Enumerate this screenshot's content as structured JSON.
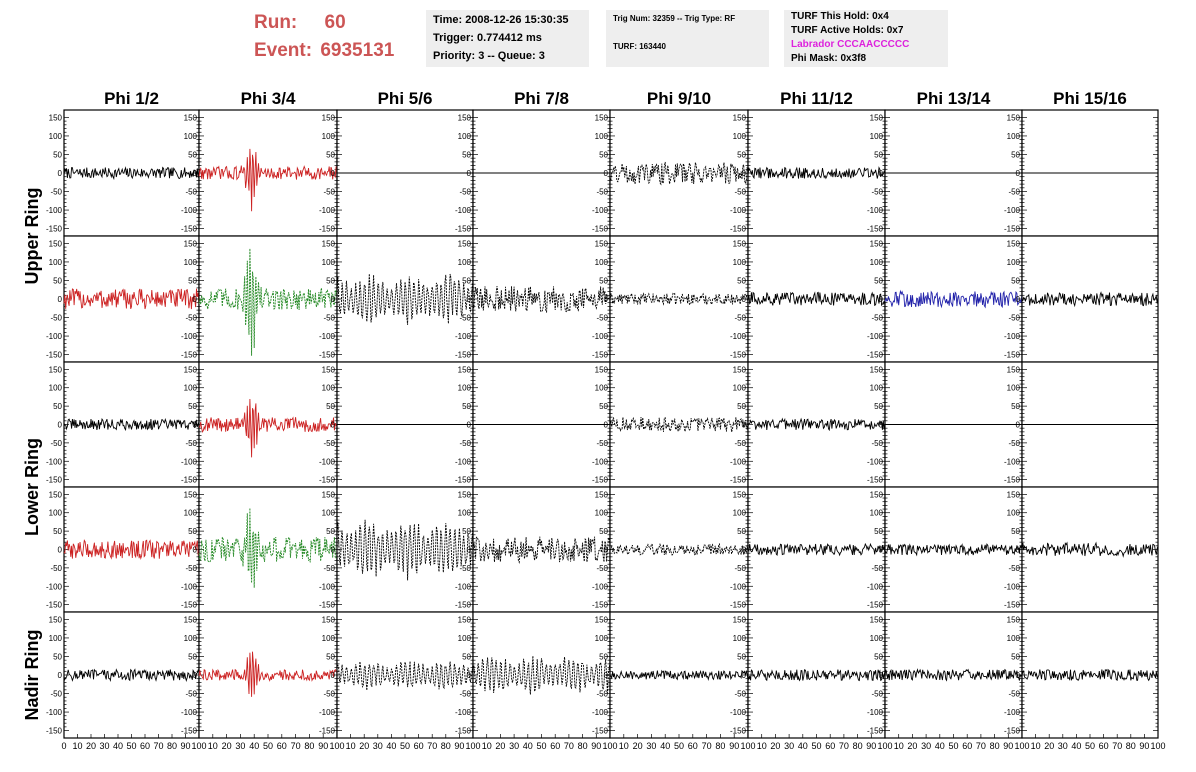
{
  "header": {
    "run_label": "Run:",
    "run_value": "60",
    "event_label": "Event:",
    "event_value": "6935131",
    "time_text": "Time: 2008-12-26 15:30:35",
    "trigger_text": "Trigger: 0.774412 ms",
    "priority_text": "Priority: 3 -- Queue: 3",
    "trig_num_text": "Trig Num: 32359 -- Trig Type: RF",
    "turf_text": "TURF: 163440",
    "turf_hold_text": "TURF This Hold: 0x4",
    "turf_active_text": "TURF Active Holds: 0x7",
    "labrador_text": "Labrador CCCAACCCCC",
    "phi_mask_text": "Phi Mask: 0x3f8"
  },
  "colors": {
    "run_text": "#cc5555",
    "labrador_text": "#dd22dd",
    "info_bg": "#eeeeee",
    "black": "#000000",
    "red": "#cc2222",
    "green": "#228822",
    "blue": "#2222aa"
  },
  "chart_data": {
    "type": "line",
    "columns": [
      "Phi 1/2",
      "Phi 3/4",
      "Phi 5/6",
      "Phi 7/8",
      "Phi 9/10",
      "Phi 11/12",
      "Phi 13/14",
      "Phi 15/16"
    ],
    "rows": [
      "Upper Ring",
      "Lower Ring",
      "Nadir Ring"
    ],
    "xlim": [
      0,
      100
    ],
    "ylim": [
      -170,
      170
    ],
    "x_tick_labels": [
      "0",
      "10",
      "20",
      "30",
      "40",
      "50",
      "60",
      "70",
      "80",
      "90",
      "100"
    ],
    "y_tick_values": [
      -150,
      -100,
      -50,
      0,
      50,
      100,
      150
    ],
    "y_tick_labels": [
      "-150",
      "-100",
      "-50",
      "0",
      "50",
      "100",
      "150"
    ],
    "grid": false,
    "panels": [
      [
        {
          "color": "black",
          "dash": false,
          "amp": 15,
          "burst": 0
        },
        {
          "color": "red",
          "dash": false,
          "amp": 18,
          "burst": 95
        },
        {
          "color": "black",
          "dash": false,
          "amp": 0,
          "burst": 0
        },
        {
          "color": "black",
          "dash": false,
          "amp": 0,
          "burst": 0
        },
        {
          "color": "black",
          "dash": true,
          "amp": 30,
          "burst": 0
        },
        {
          "color": "black",
          "dash": false,
          "amp": 15,
          "burst": 0
        },
        {
          "color": "black",
          "dash": false,
          "amp": 0,
          "burst": 0
        },
        {
          "color": "black",
          "dash": false,
          "amp": 0,
          "burst": 0
        }
      ],
      [
        {
          "color": "red",
          "dash": false,
          "amp": 28,
          "burst": 0
        },
        {
          "color": "green",
          "dash": true,
          "amp": 30,
          "burst": 150
        },
        {
          "color": "black",
          "dash": true,
          "amp": 75,
          "burst": 0
        },
        {
          "color": "black",
          "dash": true,
          "amp": 35,
          "burst": 0
        },
        {
          "color": "black",
          "dash": true,
          "amp": 15,
          "burst": 0
        },
        {
          "color": "black",
          "dash": false,
          "amp": 18,
          "burst": 0
        },
        {
          "color": "blue",
          "dash": false,
          "amp": 22,
          "burst": 0
        },
        {
          "color": "black",
          "dash": false,
          "amp": 18,
          "burst": 0
        }
      ],
      [
        {
          "color": "black",
          "dash": false,
          "amp": 15,
          "burst": 0
        },
        {
          "color": "red",
          "dash": false,
          "amp": 20,
          "burst": 95
        },
        {
          "color": "black",
          "dash": false,
          "amp": 0,
          "burst": 0
        },
        {
          "color": "black",
          "dash": false,
          "amp": 0,
          "burst": 0
        },
        {
          "color": "black",
          "dash": true,
          "amp": 20,
          "burst": 0
        },
        {
          "color": "black",
          "dash": false,
          "amp": 15,
          "burst": 0
        },
        {
          "color": "black",
          "dash": false,
          "amp": 0,
          "burst": 0
        },
        {
          "color": "black",
          "dash": false,
          "amp": 0,
          "burst": 0
        }
      ],
      [
        {
          "color": "red",
          "dash": false,
          "amp": 25,
          "burst": 0
        },
        {
          "color": "green",
          "dash": true,
          "amp": 35,
          "burst": 110
        },
        {
          "color": "black",
          "dash": true,
          "amp": 85,
          "burst": 0
        },
        {
          "color": "black",
          "dash": true,
          "amp": 35,
          "burst": 0
        },
        {
          "color": "black",
          "dash": true,
          "amp": 15,
          "burst": 0
        },
        {
          "color": "black",
          "dash": false,
          "amp": 15,
          "burst": 0
        },
        {
          "color": "black",
          "dash": false,
          "amp": 15,
          "burst": 0
        },
        {
          "color": "black",
          "dash": false,
          "amp": 18,
          "burst": 0
        }
      ],
      [
        {
          "color": "black",
          "dash": false,
          "amp": 15,
          "burst": 0
        },
        {
          "color": "red",
          "dash": false,
          "amp": 15,
          "burst": 75
        },
        {
          "color": "black",
          "dash": true,
          "amp": 45,
          "burst": 0
        },
        {
          "color": "black",
          "dash": true,
          "amp": 55,
          "burst": 0
        },
        {
          "color": "black",
          "dash": false,
          "amp": 12,
          "burst": 0
        },
        {
          "color": "black",
          "dash": false,
          "amp": 15,
          "burst": 0
        },
        {
          "color": "black",
          "dash": false,
          "amp": 15,
          "burst": 0
        },
        {
          "color": "black",
          "dash": false,
          "amp": 15,
          "burst": 0
        }
      ]
    ]
  }
}
